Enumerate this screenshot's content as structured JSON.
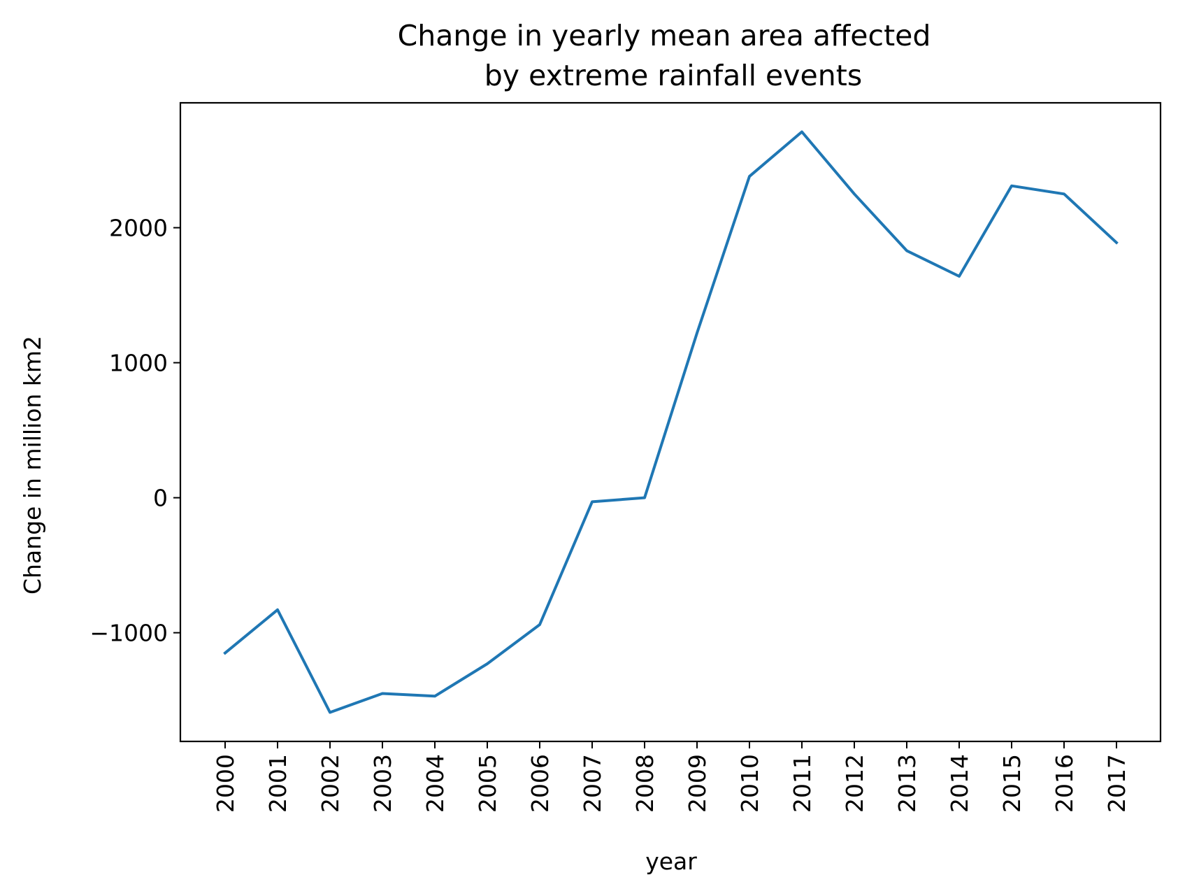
{
  "chart_data": {
    "type": "line",
    "title_line1": "Change in yearly mean area affected",
    "title_line2": "by extreme rainfall events",
    "xlabel": "year",
    "ylabel": "Change in million km2",
    "x": [
      "2000",
      "2001",
      "2002",
      "2003",
      "2004",
      "2005",
      "2006",
      "2007",
      "2008",
      "2009",
      "2010",
      "2011",
      "2012",
      "2013",
      "2014",
      "2015",
      "2016",
      "2017"
    ],
    "series": [
      {
        "values": [
          -1150,
          -830,
          -1590,
          -1450,
          -1470,
          -1230,
          -940,
          -30,
          0,
          1220,
          2380,
          2710,
          2250,
          1830,
          1640,
          2310,
          2250,
          1890
        ],
        "color": "#1f77b4"
      }
    ],
    "yticks": [
      -1000,
      0,
      1000,
      2000
    ],
    "ytick_labels": [
      "−1000",
      "0",
      "1000",
      "2000"
    ],
    "ylim": [
      -1805,
      2925
    ],
    "grid": false,
    "legend": "none"
  }
}
